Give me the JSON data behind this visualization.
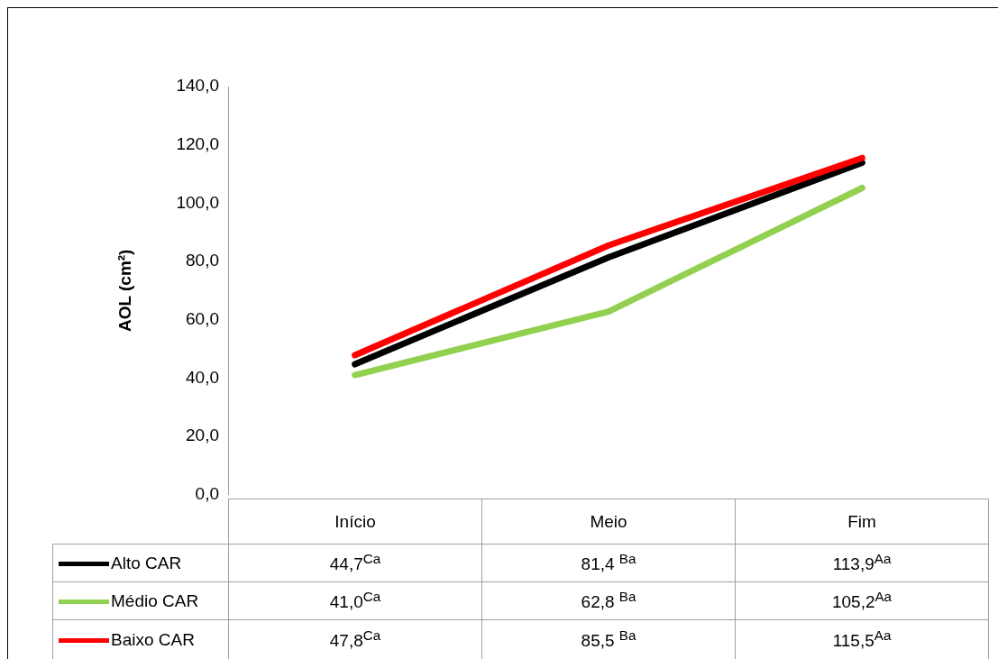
{
  "chart_data": {
    "type": "line",
    "ylabel": "AOL (cm²)",
    "categories": [
      "Início",
      "Meio",
      "Fim"
    ],
    "ylim": [
      0,
      140
    ],
    "yticks": [
      {
        "value": 0,
        "label": "0,0"
      },
      {
        "value": 20,
        "label": "20,0"
      },
      {
        "value": 40,
        "label": "40,0"
      },
      {
        "value": 60,
        "label": "60,0"
      },
      {
        "value": 80,
        "label": "80,0"
      },
      {
        "value": 100,
        "label": "100,0"
      },
      {
        "value": 120,
        "label": "120,0"
      },
      {
        "value": 140,
        "label": "140,0"
      }
    ],
    "grid": false,
    "legend": "bottom",
    "marker": "none",
    "line_style": "solid",
    "series": [
      {
        "name": "Alto CAR",
        "color": "#000000",
        "values": [
          44.7,
          81.4,
          113.9
        ],
        "value_labels": [
          "44,7$^{Ca}$",
          "81,4 $^{Ba}$",
          "113,9$^{Aa}$"
        ]
      },
      {
        "name": "Médio CAR",
        "color": "#92d050",
        "values": [
          41.0,
          62.8,
          105.2
        ],
        "value_labels": [
          "41,0$^{Ca}$",
          "62,8 $^{Ba}$",
          "105,2$^{Aa}$"
        ]
      },
      {
        "name": "Baixo CAR",
        "color": "#ff0000",
        "values": [
          47.8,
          85.5,
          115.5
        ],
        "value_labels": [
          "47,8$^{Ca}$",
          "85,5 $^{Ba}$",
          "115,5$^{Aa}$"
        ]
      }
    ]
  }
}
